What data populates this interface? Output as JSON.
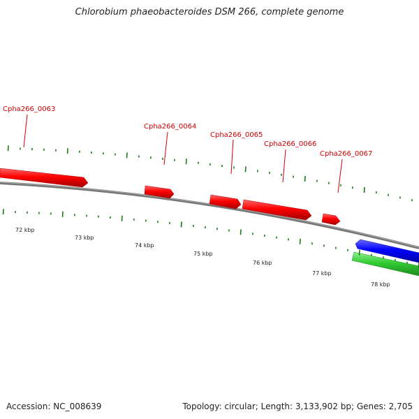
{
  "title": "Chlorobium phaeobacteroides DSM 266, complete genome",
  "footer": {
    "accession": "Accession: NC_008639",
    "summary": "Topology: circular; Length: 3,133,902 bp; Genes: 2,705"
  },
  "genes": [
    {
      "label": "Cpha266_0063",
      "strand": "+",
      "color": "#ff0000"
    },
    {
      "label": "Cpha266_0064",
      "strand": "+",
      "color": "#ff0000"
    },
    {
      "label": "Cpha266_0065",
      "strand": "+",
      "color": "#ff0000"
    },
    {
      "label": "Cpha266_0066",
      "strand": "+",
      "color": "#ff0000"
    },
    {
      "label": "Cpha266_0067",
      "strand": "+",
      "color": "#ff0000"
    },
    {
      "label": "",
      "strand": "-",
      "color": "#0000ff"
    },
    {
      "label": "",
      "strand": "-",
      "color": "#33cc33"
    }
  ],
  "scale_labels": [
    "72 kbp",
    "73 kbp",
    "74 kbp",
    "75 kbp",
    "76 kbp",
    "77 kbp",
    "78 kbp"
  ],
  "colors": {
    "backbone": "#888888",
    "forward_gene": "#ff0000",
    "reverse_gene": "#0000ff",
    "rna_gene": "#33cc33",
    "gene_label": "#cc0000",
    "tick": "#1a7a1a"
  }
}
